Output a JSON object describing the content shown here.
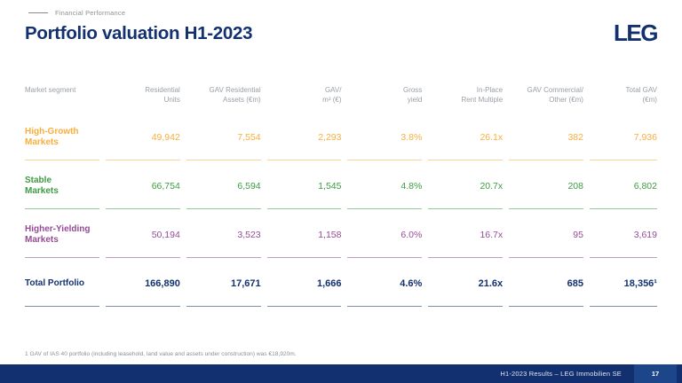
{
  "slide": {
    "eyebrow": "Financial Performance",
    "title": "Portfolio valuation H1-2023",
    "logo": "LEG"
  },
  "colors": {
    "navy": "#13316F",
    "orange": "#F9AE3D",
    "green": "#3F9B45",
    "purple": "#954B97",
    "header_grey": "#9AA0A8",
    "footer_bar": "#123070",
    "page_box": "#1D4589"
  },
  "table": {
    "columns": [
      "Market segment",
      "Residential\nUnits",
      "GAV Residential\nAssets (€m)",
      "GAV/\nm² (€)",
      "Gross\nyield",
      "In-Place\nRent Multiple",
      "GAV Commercial/\nOther (€m)",
      "Total GAV\n(€m)"
    ],
    "rows": [
      {
        "label": "High-Growth\nMarkets",
        "color_key": "orange",
        "total": false,
        "values": [
          "49,942",
          "7,554",
          "2,293",
          "3.8%",
          "26.1x",
          "382",
          "7,936"
        ]
      },
      {
        "label": "Stable\nMarkets",
        "color_key": "green",
        "total": false,
        "values": [
          "66,754",
          "6,594",
          "1,545",
          "4.8%",
          "20.7x",
          "208",
          "6,802"
        ]
      },
      {
        "label": "Higher-Yielding\nMarkets",
        "color_key": "purple",
        "total": false,
        "values": [
          "50,194",
          "3,523",
          "1,158",
          "6.0%",
          "16.7x",
          "95",
          "3,619"
        ]
      },
      {
        "label": "Total Portfolio",
        "color_key": "navy",
        "total": true,
        "values": [
          "166,890",
          "17,671",
          "1,666",
          "4.6%",
          "21.6x",
          "685",
          "18,356¹"
        ]
      }
    ]
  },
  "footnote": "1 GAV of IAS 40 portfolio (including leasehold, land value and assets under construction) was €18,920m.",
  "footer": {
    "text": "H1-2023 Results – LEG Immobilien SE",
    "page": "17"
  }
}
